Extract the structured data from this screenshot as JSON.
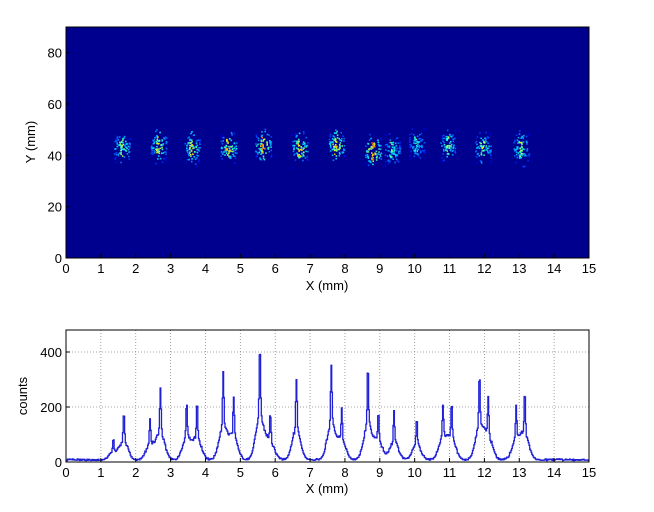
{
  "chart_data": [
    {
      "type": "heatmap",
      "xlabel": "X (mm)",
      "ylabel": "Y (mm)",
      "xlim": [
        0,
        15
      ],
      "ylim": [
        0,
        90
      ],
      "xticks": [
        0,
        1,
        2,
        3,
        4,
        5,
        6,
        7,
        8,
        9,
        10,
        11,
        12,
        13,
        14,
        15
      ],
      "yticks": [
        0,
        20,
        40,
        60,
        80
      ],
      "grid": false,
      "background_color": "#00008f",
      "colormap": "jet",
      "spots": [
        {
          "x": 1.6,
          "y": 43,
          "intensity": 0.45
        },
        {
          "x": 2.65,
          "y": 44,
          "intensity": 0.55
        },
        {
          "x": 3.6,
          "y": 43,
          "intensity": 0.55
        },
        {
          "x": 4.65,
          "y": 43,
          "intensity": 0.6
        },
        {
          "x": 5.65,
          "y": 44,
          "intensity": 0.65
        },
        {
          "x": 6.7,
          "y": 43,
          "intensity": 0.6
        },
        {
          "x": 7.75,
          "y": 44,
          "intensity": 0.6
        },
        {
          "x": 8.8,
          "y": 42,
          "intensity": 0.75
        },
        {
          "x": 9.35,
          "y": 42,
          "intensity": 0.35
        },
        {
          "x": 10.05,
          "y": 45,
          "intensity": 0.3
        },
        {
          "x": 10.95,
          "y": 44,
          "intensity": 0.45
        },
        {
          "x": 11.95,
          "y": 43,
          "intensity": 0.45
        },
        {
          "x": 13.05,
          "y": 43,
          "intensity": 0.45
        }
      ]
    },
    {
      "type": "line",
      "xlabel": "X (mm)",
      "ylabel": "counts",
      "xlim": [
        0,
        15
      ],
      "ylim": [
        0,
        480
      ],
      "xticks": [
        0,
        1,
        2,
        3,
        4,
        5,
        6,
        7,
        8,
        9,
        10,
        11,
        12,
        13,
        14,
        15
      ],
      "yticks": [
        0,
        200,
        400
      ],
      "grid": true,
      "line_color": "#1f1fd6",
      "baseline": 8,
      "peaks": [
        {
          "x": 1.35,
          "y": 75
        },
        {
          "x": 1.65,
          "y": 175
        },
        {
          "x": 2.4,
          "y": 140
        },
        {
          "x": 2.7,
          "y": 260
        },
        {
          "x": 3.45,
          "y": 210
        },
        {
          "x": 3.75,
          "y": 210
        },
        {
          "x": 4.5,
          "y": 315
        },
        {
          "x": 4.8,
          "y": 228
        },
        {
          "x": 5.55,
          "y": 418
        },
        {
          "x": 5.85,
          "y": 170
        },
        {
          "x": 6.6,
          "y": 295
        },
        {
          "x": 7.6,
          "y": 340
        },
        {
          "x": 7.9,
          "y": 180
        },
        {
          "x": 8.65,
          "y": 345
        },
        {
          "x": 8.95,
          "y": 170
        },
        {
          "x": 9.4,
          "y": 175
        },
        {
          "x": 10.05,
          "y": 150
        },
        {
          "x": 10.8,
          "y": 195
        },
        {
          "x": 11.05,
          "y": 200
        },
        {
          "x": 11.85,
          "y": 308
        },
        {
          "x": 12.1,
          "y": 215
        },
        {
          "x": 12.9,
          "y": 185
        },
        {
          "x": 13.15,
          "y": 238
        }
      ]
    }
  ]
}
